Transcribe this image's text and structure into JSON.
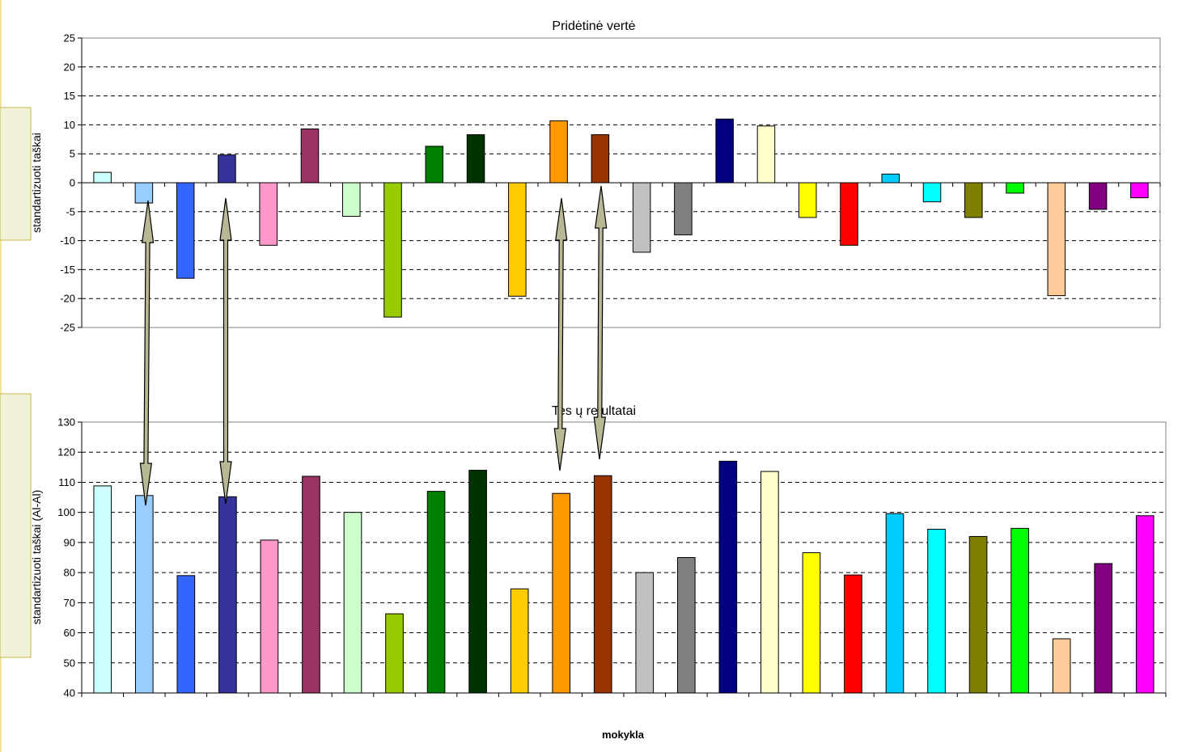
{
  "colors": {
    "bars": [
      "#ccffff",
      "#99ccff",
      "#3366ff",
      "#333399",
      "#ff99cc",
      "#993366",
      "#ccffcc",
      "#99cc00",
      "#008000",
      "#003300",
      "#ffcc00",
      "#ff9900",
      "#993300",
      "#c0c0c0",
      "#808080",
      "#000080",
      "#ffffcc",
      "#ffff00",
      "#ff0000",
      "#00ccff",
      "#00ffff",
      "#808000",
      "#00ff00",
      "#ffcc99",
      "#800080",
      "#ff00ff"
    ],
    "arrow_fill": "#b8b894",
    "overlay_box": "#f2f2d9",
    "overlay_border": "#c8b84a",
    "grid": "#000000"
  },
  "xlabel": "mokykla",
  "chart_data": [
    {
      "type": "bar",
      "title": "Pridėtinė vertė",
      "ylabel": "standartizuoti taškai",
      "xlabel": "",
      "ylim": [
        -25,
        25
      ],
      "yticks": [
        25,
        20,
        15,
        10,
        5,
        0,
        -5,
        -10,
        -15,
        -20,
        -25
      ],
      "grid": true,
      "legend": "none",
      "values": [
        1.8,
        -3.5,
        -16.5,
        4.8,
        -10.8,
        9.3,
        -5.8,
        -23.2,
        6.3,
        8.3,
        -19.6,
        10.7,
        8.3,
        -12.0,
        -9.0,
        11.0,
        9.8,
        -6.0,
        -10.8,
        1.5,
        -3.3,
        -6.0,
        -1.8,
        -19.5,
        -4.6,
        -2.6
      ]
    },
    {
      "type": "bar",
      "title": "Tes ų re ultatai",
      "ylabel": "standartizuoti taškai (Al-Al)",
      "xlabel": "mokykla",
      "ylim": [
        40,
        130
      ],
      "yticks": [
        130,
        120,
        110,
        100,
        90,
        80,
        70,
        60,
        50,
        40
      ],
      "grid": true,
      "legend": "none",
      "values": [
        108.8,
        105.6,
        79.0,
        105.2,
        90.8,
        112.0,
        100.0,
        66.3,
        107.0,
        114.0,
        74.6,
        106.3,
        112.2,
        80.0,
        85.0,
        117.0,
        113.6,
        86.6,
        79.2,
        99.6,
        94.4,
        92.0,
        94.7,
        58.0,
        83.0,
        98.9
      ]
    }
  ]
}
